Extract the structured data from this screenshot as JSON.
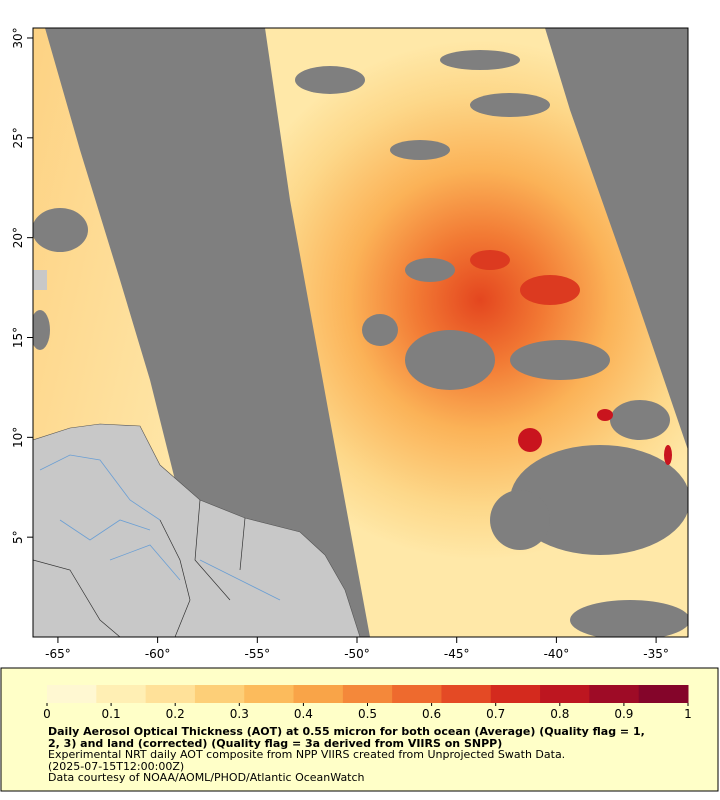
{
  "map": {
    "xlim": [
      -66.25,
      -33.4
    ],
    "ylim": [
      0,
      30.5
    ],
    "xticks": [
      {
        "value": -65,
        "label": "-65°"
      },
      {
        "value": -60,
        "label": "-60°"
      },
      {
        "value": -55,
        "label": "-55°"
      },
      {
        "value": -50,
        "label": "-50°"
      },
      {
        "value": -45,
        "label": "-45°"
      },
      {
        "value": -40,
        "label": "-40°"
      },
      {
        "value": -35,
        "label": "-35°"
      }
    ],
    "yticks": [
      {
        "value": 5,
        "label": "5°"
      },
      {
        "value": 10,
        "label": "10°"
      },
      {
        "value": 15,
        "label": "15°"
      },
      {
        "value": 20,
        "label": "20°"
      },
      {
        "value": 25,
        "label": "25°"
      },
      {
        "value": 30,
        "label": "30°"
      }
    ]
  },
  "colorbar": {
    "lim": [
      0,
      1
    ],
    "ticks": [
      0,
      0.1,
      0.2,
      0.3,
      0.4,
      0.5,
      0.6,
      0.7,
      0.8,
      0.9,
      1
    ],
    "colors": [
      "#fff8d2",
      "#ffefb4",
      "#ffe199",
      "#fdcf78",
      "#fcbb5c",
      "#f9a448",
      "#f4883a",
      "#ee6a2e",
      "#e44a25",
      "#d42a1e",
      "#bd1620",
      "#9e0b26",
      "#84052a"
    ]
  },
  "caption": {
    "title": [
      "Daily Aerosol Optical Thickness (AOT) at 0.55 micron for both ocean (Average) (Quality flag = 1,",
      "2, 3) and land (corrected) (Quality flag = 3a derived from VIIRS on SNPP)"
    ],
    "lines": [
      "Experimental NRT daily AOT composite from NPP VIIRS created from Unprojected Swath Data.",
      "(2025-07-15T12:00:00Z)",
      "Data courtesy of NOAA/AOML/PHOD/Atlantic OceanWatch"
    ]
  }
}
